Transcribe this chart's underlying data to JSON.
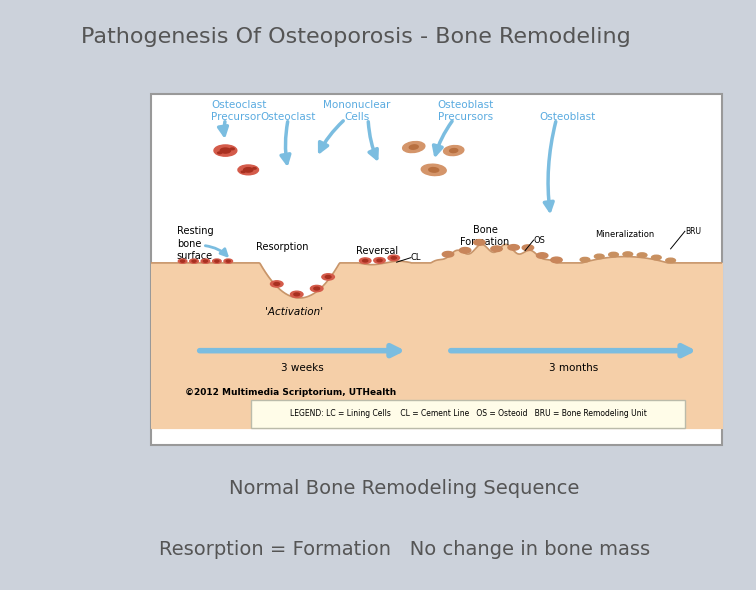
{
  "title": "Pathogenesis Of Osteoporosis - Bone Remodeling",
  "title_fontsize": 16,
  "title_color": "#555555",
  "slide_bg": "#ccd2db",
  "title_bar_color": "#dde0e5",
  "divider_color": "#4a6272",
  "text1": "Normal Bone Remodeling Sequence",
  "text2": "Resorption = Formation   No change in bone mass",
  "text_color": "#555555",
  "text1_fontsize": 14,
  "text2_fontsize": 14,
  "label_color": "#5aabe0",
  "bone_fill": "#f5cfa8",
  "bone_line": "#c8956a",
  "cell_red": "#d45b4a",
  "cell_red_inner": "#a83020",
  "cell_orange": "#d4956a",
  "arrow_color": "#7bbde0",
  "legend_fill": "#fffce8"
}
